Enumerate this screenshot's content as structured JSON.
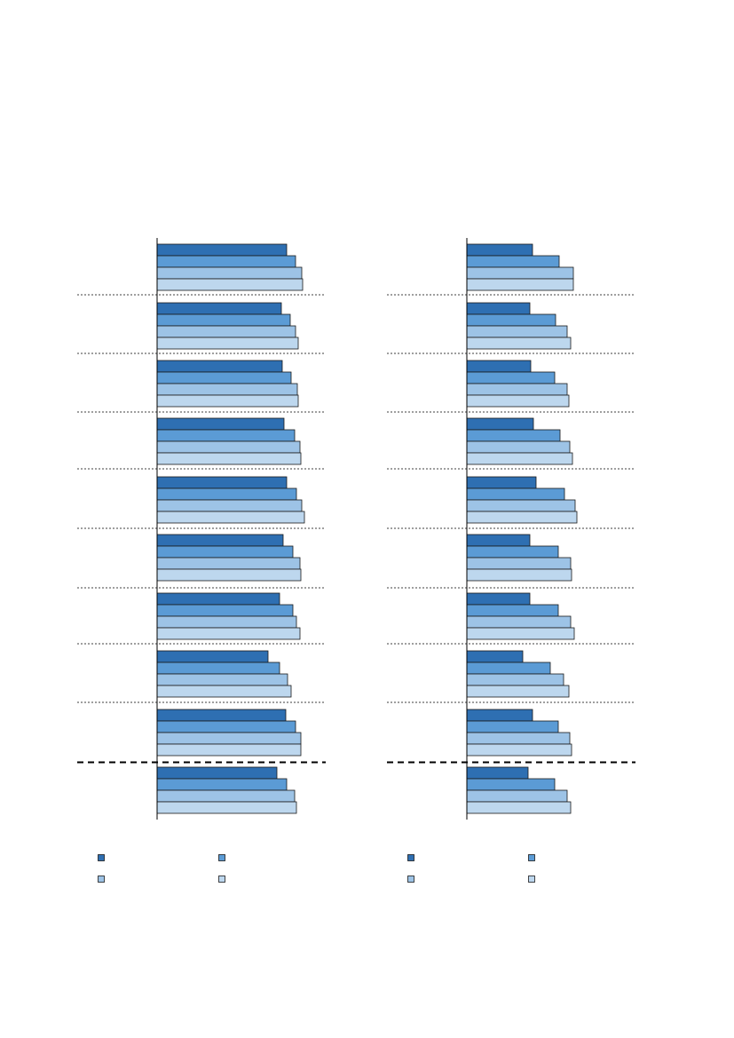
{
  "chart_data": [
    {
      "type": "bar",
      "orientation": "horizontal",
      "xlim": [
        0,
        190
      ],
      "series": [
        {
          "color": "#2e6fb2",
          "values": [
            146,
            140,
            141,
            143,
            146,
            142,
            138,
            125,
            145,
            135
          ]
        },
        {
          "color": "#5b9bd5",
          "values": [
            156,
            150,
            151,
            155,
            157,
            153,
            153,
            138,
            156,
            146
          ]
        },
        {
          "color": "#9dc3e6",
          "values": [
            163,
            156,
            158,
            161,
            163,
            161,
            157,
            147,
            162,
            155
          ]
        },
        {
          "color": "#bdd7ee",
          "values": [
            164,
            159,
            159,
            162,
            166,
            162,
            161,
            151,
            162,
            157
          ]
        }
      ]
    },
    {
      "type": "bar",
      "orientation": "horizontal",
      "xlim": [
        0,
        190
      ],
      "series": [
        {
          "color": "#2e6fb2",
          "values": [
            74,
            71,
            72,
            75,
            78,
            71,
            71,
            63,
            74,
            69
          ]
        },
        {
          "color": "#5b9bd5",
          "values": [
            104,
            100,
            99,
            105,
            110,
            103,
            103,
            94,
            103,
            99
          ]
        },
        {
          "color": "#9dc3e6",
          "values": [
            120,
            113,
            113,
            116,
            122,
            117,
            117,
            109,
            116,
            113
          ]
        },
        {
          "color": "#bdd7ee",
          "values": [
            120,
            117,
            115,
            119,
            124,
            118,
            121,
            115,
            118,
            117
          ]
        }
      ]
    }
  ]
}
